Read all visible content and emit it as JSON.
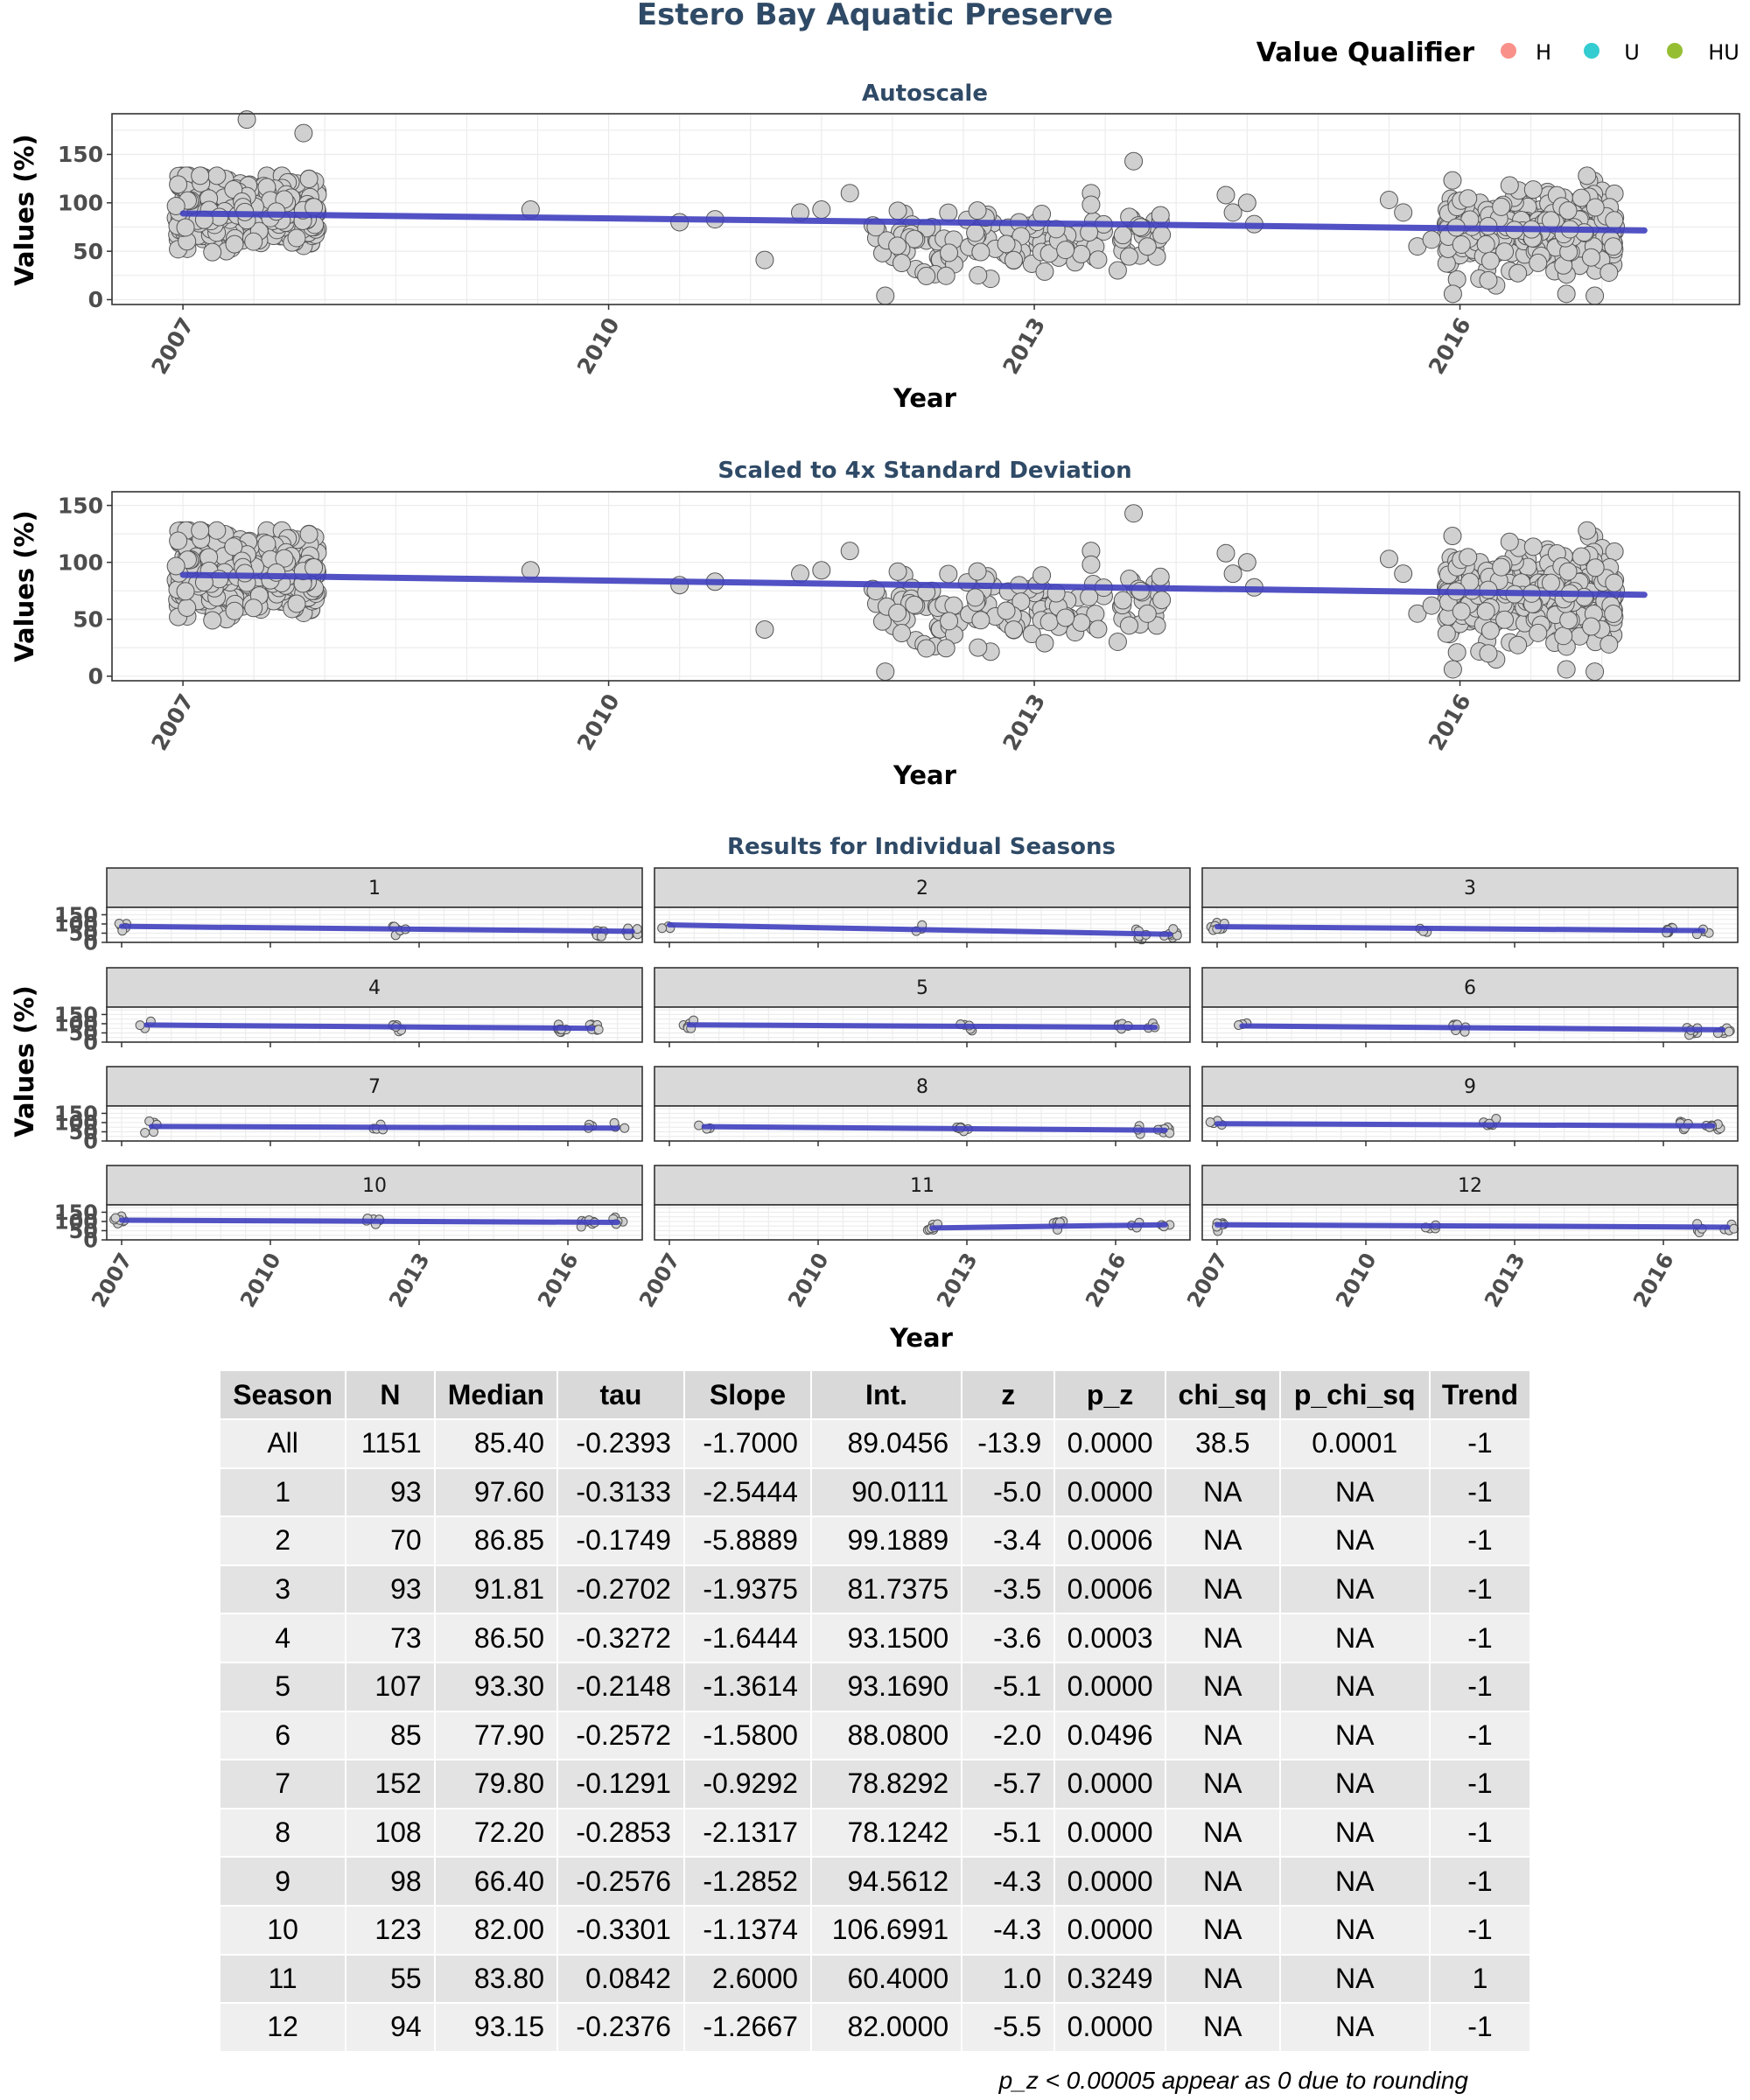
{
  "figure_title": "Estero Bay Aquatic Preserve",
  "legend": {
    "title": "Value Qualifier",
    "items": [
      {
        "label": "H",
        "color": "#f8766d"
      },
      {
        "label": "U",
        "color": "#00bfc4"
      },
      {
        "label": "HU",
        "color": "#7cae00"
      }
    ]
  },
  "chart_data": [
    {
      "type": "scatter",
      "title": "Autoscale",
      "xlabel": "Year",
      "ylabel": "Values (%)",
      "x_ticks": [
        "2007",
        "2010",
        "2013",
        "2016"
      ],
      "y_ticks": [
        0,
        50,
        100,
        150
      ],
      "xlim": [
        2006.5,
        2017.97
      ],
      "ylim": [
        -5,
        192
      ],
      "grid": true,
      "point_color": "#d0d0d0",
      "trend_color": "#3f3fbf",
      "trend": {
        "x": [
          2007.0,
          2017.3
        ],
        "y": [
          89.0,
          71.5
        ]
      },
      "outliers": [
        {
          "x": 2007.45,
          "y": 186
        },
        {
          "x": 2007.85,
          "y": 172
        },
        {
          "x": 2013.7,
          "y": 143
        },
        {
          "x": 2016.35,
          "y": 118
        }
      ]
    },
    {
      "type": "scatter",
      "title": "Scaled to 4x Standard Deviation",
      "xlabel": "Year",
      "ylabel": "Values (%)",
      "x_ticks": [
        "2007",
        "2010",
        "2013",
        "2016"
      ],
      "y_ticks": [
        0,
        50,
        100,
        150
      ],
      "xlim": [
        2006.5,
        2017.97
      ],
      "ylim": [
        -4,
        162
      ],
      "grid": true,
      "point_color": "#d0d0d0",
      "trend_color": "#3f3fbf",
      "trend": {
        "x": [
          2007.0,
          2017.3
        ],
        "y": [
          89.0,
          71.5
        ]
      }
    },
    {
      "type": "scatter",
      "title": "Results for Individual Seasons",
      "xlabel": "Year",
      "ylabel": "Values (%)",
      "x_ticks": [
        "2007",
        "2010",
        "2013",
        "2016"
      ],
      "y_ticks": [
        0,
        50,
        100,
        150
      ],
      "ylim": [
        0,
        190
      ],
      "grid": true,
      "panels": [
        {
          "label": "1",
          "trend": {
            "x": [
              2007.0,
              2017.3
            ],
            "y": [
              87,
              60
            ]
          }
        },
        {
          "label": "2",
          "trend": {
            "x": [
              2007.0,
              2017.1
            ],
            "y": [
              95,
              44
            ]
          }
        },
        {
          "label": "3",
          "trend": {
            "x": [
              2007.0,
              2016.8
            ],
            "y": [
              85,
              64
            ]
          }
        },
        {
          "label": "4",
          "trend": {
            "x": [
              2007.5,
              2016.5
            ],
            "y": [
              93,
              75
            ]
          }
        },
        {
          "label": "5",
          "trend": {
            "x": [
              2007.4,
              2016.8
            ],
            "y": [
              94,
              80
            ]
          }
        },
        {
          "label": "6",
          "trend": {
            "x": [
              2007.5,
              2017.2
            ],
            "y": [
              88,
              67
            ]
          }
        },
        {
          "label": "7",
          "trend": {
            "x": [
              2007.6,
              2017.0
            ],
            "y": [
              79,
              70
            ]
          }
        },
        {
          "label": "8",
          "trend": {
            "x": [
              2007.7,
              2017.0
            ],
            "y": [
              78,
              58
            ]
          }
        },
        {
          "label": "9",
          "trend": {
            "x": [
              2007.0,
              2017.0
            ],
            "y": [
              94,
              82
            ]
          }
        },
        {
          "label": "10",
          "trend": {
            "x": [
              2007.0,
              2017.0
            ],
            "y": [
              107,
              95
            ]
          }
        },
        {
          "label": "11",
          "trend": {
            "x": [
              2012.3,
              2017.0
            ],
            "y": [
              65,
              82
            ]
          }
        },
        {
          "label": "12",
          "trend": {
            "x": [
              2007.0,
              2017.3
            ],
            "y": [
              82,
              69
            ]
          }
        }
      ]
    }
  ],
  "table": {
    "headers": [
      "Season",
      "N",
      "Median",
      "tau",
      "Slope",
      "Int.",
      "z",
      "p_z",
      "chi_sq",
      "p_chi_sq",
      "Trend"
    ],
    "rows": [
      [
        "All",
        "1151",
        "85.40",
        "-0.2393",
        "-1.7000",
        "89.0456",
        "-13.9",
        "0.0000",
        "38.5",
        "0.0001",
        "-1"
      ],
      [
        "1",
        "93",
        "97.60",
        "-0.3133",
        "-2.5444",
        "90.0111",
        "-5.0",
        "0.0000",
        "NA",
        "NA",
        "-1"
      ],
      [
        "2",
        "70",
        "86.85",
        "-0.1749",
        "-5.8889",
        "99.1889",
        "-3.4",
        "0.0006",
        "NA",
        "NA",
        "-1"
      ],
      [
        "3",
        "93",
        "91.81",
        "-0.2702",
        "-1.9375",
        "81.7375",
        "-3.5",
        "0.0006",
        "NA",
        "NA",
        "-1"
      ],
      [
        "4",
        "73",
        "86.50",
        "-0.3272",
        "-1.6444",
        "93.1500",
        "-3.6",
        "0.0003",
        "NA",
        "NA",
        "-1"
      ],
      [
        "5",
        "107",
        "93.30",
        "-0.2148",
        "-1.3614",
        "93.1690",
        "-5.1",
        "0.0000",
        "NA",
        "NA",
        "-1"
      ],
      [
        "6",
        "85",
        "77.90",
        "-0.2572",
        "-1.5800",
        "88.0800",
        "-2.0",
        "0.0496",
        "NA",
        "NA",
        "-1"
      ],
      [
        "7",
        "152",
        "79.80",
        "-0.1291",
        "-0.9292",
        "78.8292",
        "-5.7",
        "0.0000",
        "NA",
        "NA",
        "-1"
      ],
      [
        "8",
        "108",
        "72.20",
        "-0.2853",
        "-2.1317",
        "78.1242",
        "-5.1",
        "0.0000",
        "NA",
        "NA",
        "-1"
      ],
      [
        "9",
        "98",
        "66.40",
        "-0.2576",
        "-1.2852",
        "94.5612",
        "-4.3",
        "0.0000",
        "NA",
        "NA",
        "-1"
      ],
      [
        "10",
        "123",
        "82.00",
        "-0.3301",
        "-1.1374",
        "106.6991",
        "-4.3",
        "0.0000",
        "NA",
        "NA",
        "-1"
      ],
      [
        "11",
        "55",
        "83.80",
        "0.0842",
        "2.6000",
        "60.4000",
        "1.0",
        "0.3249",
        "NA",
        "NA",
        "1"
      ],
      [
        "12",
        "94",
        "93.15",
        "-0.2376",
        "-1.2667",
        "82.0000",
        "-5.5",
        "0.0000",
        "NA",
        "NA",
        "-1"
      ]
    ]
  },
  "footnote": "p_z < 0.00005 appear as 0 due to rounding"
}
